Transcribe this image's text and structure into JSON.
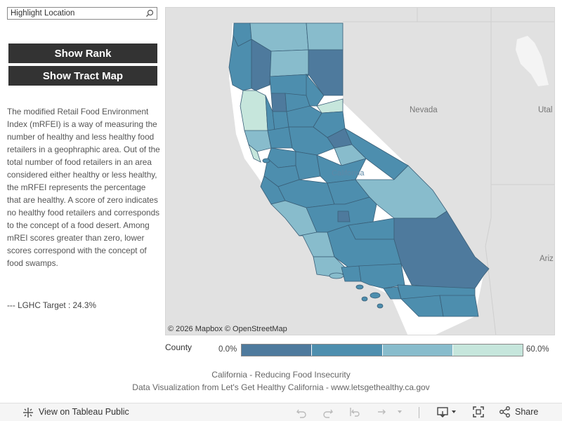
{
  "search": {
    "placeholder": "Highlight Location"
  },
  "buttons": {
    "show_rank": "Show Rank",
    "show_tract_map": "Show Tract Map"
  },
  "description": "The modified Retail Food Environment Index (mRFEI) is a way of measuring the number of healthy and less healthy food retailers in a geophraphic area.  Out of the total number of food retailers in an area considered either healthy or less healthy, the mRFEI represents the percentage that are healthy.  A score of zero indicates no healthy food retailers and corresponds to the concept of a food desert.  Among mREI scores greater than zero, lower scores correspond with the concept of food swamps.",
  "target": "--- LGHC Target : 24.3%",
  "map": {
    "labels": {
      "nevada": "Nevada",
      "utah": "Utal",
      "arizona": "Ariz",
      "california": "California"
    },
    "attribution": "© 2026 Mapbox  © OpenStreetMap"
  },
  "legend": {
    "title": "County",
    "min": "0.0%",
    "max": "60.0%",
    "colors": [
      "#4e7a9d",
      "#4d8eae",
      "#88bccc",
      "#c6e6dc"
    ]
  },
  "footer": {
    "line1": "California - Reducing Food Insecurity",
    "line2": "Data Visualization from Let's Get Healthy California - www.letsgethealthy.ca.gov"
  },
  "toolbar": {
    "view_label": "View on Tableau Public",
    "share_label": "Share"
  },
  "colors": {
    "land": "#ffffff",
    "background": "#e1e1e1",
    "county_border": "#3a5f78"
  }
}
